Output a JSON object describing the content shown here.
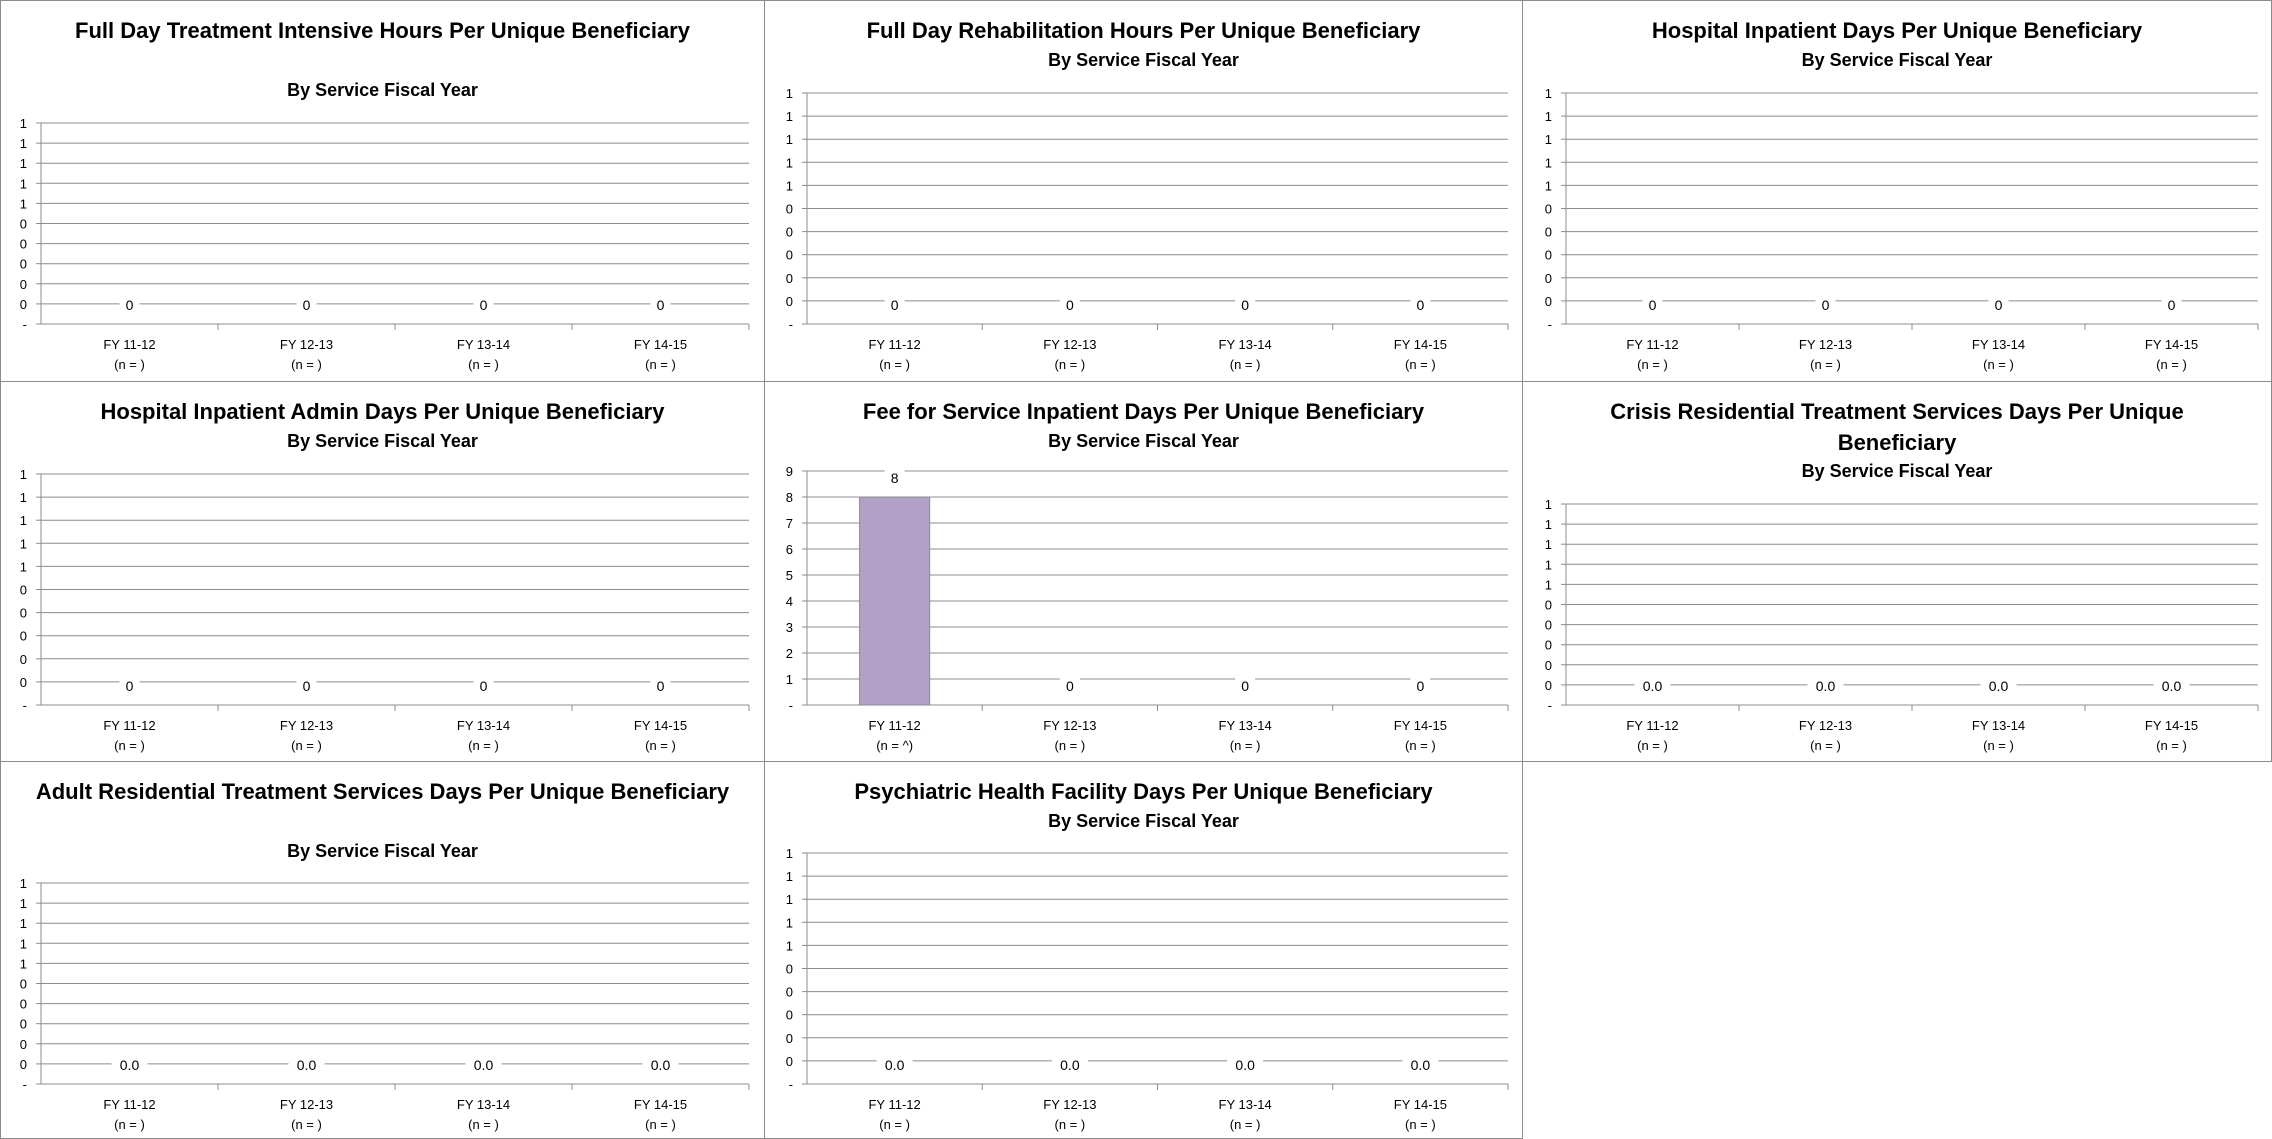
{
  "chart_data": [
    {
      "type": "bar",
      "title": "Full Day Treatment Intensive Hours Per Unique Beneficiary",
      "subtitle": "By Service Fiscal Year",
      "categories": [
        "FY 11-12",
        "FY 12-13",
        "FY 13-14",
        "FY 14-15"
      ],
      "n_labels": [
        "(n = )",
        "(n = )",
        "(n = )",
        "(n = )"
      ],
      "values": [
        0,
        0,
        0,
        0
      ],
      "data_labels": [
        "0",
        "0",
        "0",
        "0"
      ],
      "y_tick_labels": [
        "-",
        "0",
        "0",
        "0",
        "0",
        "0",
        "1",
        "1",
        "1",
        "1",
        "1"
      ],
      "ylim": [
        0,
        1
      ],
      "grid": true,
      "bar_color": "#b2a1c7"
    },
    {
      "type": "bar",
      "title": "Full Day Rehabilitation Hours Per Unique Beneficiary",
      "subtitle": "By Service Fiscal Year",
      "categories": [
        "FY 11-12",
        "FY 12-13",
        "FY 13-14",
        "FY 14-15"
      ],
      "n_labels": [
        "(n = )",
        "(n = )",
        "(n = )",
        "(n = )"
      ],
      "values": [
        0,
        0,
        0,
        0
      ],
      "data_labels": [
        "0",
        "0",
        "0",
        "0"
      ],
      "y_tick_labels": [
        "-",
        "0",
        "0",
        "0",
        "0",
        "0",
        "1",
        "1",
        "1",
        "1",
        "1"
      ],
      "ylim": [
        0,
        1
      ],
      "grid": true,
      "bar_color": "#b2a1c7"
    },
    {
      "type": "bar",
      "title": "Hospital Inpatient Days Per Unique Beneficiary",
      "subtitle": "By Service Fiscal Year",
      "categories": [
        "FY 11-12",
        "FY 12-13",
        "FY 13-14",
        "FY 14-15"
      ],
      "n_labels": [
        "(n = )",
        "(n = )",
        "(n = )",
        "(n = )"
      ],
      "values": [
        0,
        0,
        0,
        0
      ],
      "data_labels": [
        "0",
        "0",
        "0",
        "0"
      ],
      "y_tick_labels": [
        "-",
        "0",
        "0",
        "0",
        "0",
        "0",
        "1",
        "1",
        "1",
        "1",
        "1"
      ],
      "ylim": [
        0,
        1
      ],
      "grid": true,
      "bar_color": "#b2a1c7"
    },
    {
      "type": "bar",
      "title": "Hospital Inpatient Admin Days Per Unique Beneficiary",
      "subtitle": "By Service Fiscal Year",
      "categories": [
        "FY 11-12",
        "FY 12-13",
        "FY 13-14",
        "FY 14-15"
      ],
      "n_labels": [
        "(n = )",
        "(n = )",
        "(n = )",
        "(n = )"
      ],
      "values": [
        0,
        0,
        0,
        0
      ],
      "data_labels": [
        "0",
        "0",
        "0",
        "0"
      ],
      "y_tick_labels": [
        "-",
        "0",
        "0",
        "0",
        "0",
        "0",
        "1",
        "1",
        "1",
        "1",
        "1"
      ],
      "ylim": [
        0,
        1
      ],
      "grid": true,
      "bar_color": "#b2a1c7"
    },
    {
      "type": "bar",
      "title": "Fee for Service Inpatient Days Per Unique Beneficiary",
      "subtitle": "By Service Fiscal Year",
      "categories": [
        "FY 11-12",
        "FY 12-13",
        "FY 13-14",
        "FY 14-15"
      ],
      "n_labels": [
        "(n = ^)",
        "(n = )",
        "(n = )",
        "(n = )"
      ],
      "values": [
        8,
        0,
        0,
        0
      ],
      "data_labels": [
        "8",
        "0",
        "0",
        "0"
      ],
      "y_tick_labels": [
        "-",
        "1",
        "2",
        "3",
        "4",
        "5",
        "6",
        "7",
        "8",
        "9"
      ],
      "ylim": [
        0,
        9
      ],
      "grid": true,
      "bar_color": "#b2a1c7"
    },
    {
      "type": "bar",
      "title": "Crisis Residential Treatment Services Days Per Unique Beneficiary",
      "subtitle": "By Service Fiscal Year",
      "categories": [
        "FY 11-12",
        "FY 12-13",
        "FY 13-14",
        "FY 14-15"
      ],
      "n_labels": [
        "(n = )",
        "(n = )",
        "(n = )",
        "(n = )"
      ],
      "values": [
        0,
        0,
        0,
        0
      ],
      "data_labels": [
        "0.0",
        "0.0",
        "0.0",
        "0.0"
      ],
      "y_tick_labels": [
        "-",
        "0",
        "0",
        "0",
        "0",
        "0",
        "1",
        "1",
        "1",
        "1",
        "1"
      ],
      "ylim": [
        0,
        1
      ],
      "grid": true,
      "bar_color": "#b2a1c7"
    },
    {
      "type": "bar",
      "title": "Adult Residential Treatment Services Days Per Unique Beneficiary",
      "subtitle": "By Service Fiscal Year",
      "categories": [
        "FY 11-12",
        "FY 12-13",
        "FY 13-14",
        "FY 14-15"
      ],
      "n_labels": [
        "(n = )",
        "(n = )",
        "(n = )",
        "(n = )"
      ],
      "values": [
        0,
        0,
        0,
        0
      ],
      "data_labels": [
        "0.0",
        "0.0",
        "0.0",
        "0.0"
      ],
      "y_tick_labels": [
        "-",
        "0",
        "0",
        "0",
        "0",
        "0",
        "1",
        "1",
        "1",
        "1",
        "1"
      ],
      "ylim": [
        0,
        1
      ],
      "grid": true,
      "bar_color": "#b2a1c7"
    },
    {
      "type": "bar",
      "title": "Psychiatric Health Facility Days Per Unique Beneficiary",
      "subtitle": "By Service Fiscal Year",
      "categories": [
        "FY 11-12",
        "FY 12-13",
        "FY 13-14",
        "FY 14-15"
      ],
      "n_labels": [
        "(n = )",
        "(n = )",
        "(n = )",
        "(n = )"
      ],
      "values": [
        0,
        0,
        0,
        0
      ],
      "data_labels": [
        "0.0",
        "0.0",
        "0.0",
        "0.0"
      ],
      "y_tick_labels": [
        "-",
        "0",
        "0",
        "0",
        "0",
        "0",
        "1",
        "1",
        "1",
        "1",
        "1"
      ],
      "ylim": [
        0,
        1
      ],
      "grid": true,
      "bar_color": "#b2a1c7"
    }
  ]
}
